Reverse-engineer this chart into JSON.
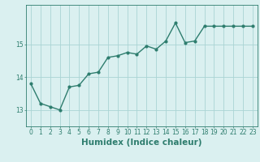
{
  "x": [
    0,
    1,
    2,
    3,
    4,
    5,
    6,
    7,
    8,
    9,
    10,
    11,
    12,
    13,
    14,
    15,
    16,
    17,
    18,
    19,
    20,
    21,
    22,
    23
  ],
  "y": [
    13.8,
    13.2,
    13.1,
    13.0,
    13.7,
    13.75,
    14.1,
    14.15,
    14.6,
    14.65,
    14.75,
    14.7,
    14.95,
    14.85,
    15.1,
    15.65,
    15.05,
    15.1,
    15.55,
    15.55,
    15.55,
    15.55,
    15.55,
    15.55
  ],
  "line_color": "#2e7d6e",
  "marker": "o",
  "marker_size": 2.0,
  "bg_color": "#daf0f0",
  "grid_color": "#aad4d4",
  "xlabel": "Humidex (Indice chaleur)",
  "ylim": [
    12.5,
    16.2
  ],
  "yticks": [
    13,
    14,
    15
  ],
  "xticks": [
    0,
    1,
    2,
    3,
    4,
    5,
    6,
    7,
    8,
    9,
    10,
    11,
    12,
    13,
    14,
    15,
    16,
    17,
    18,
    19,
    20,
    21,
    22,
    23
  ],
  "tick_fontsize": 5.5,
  "xlabel_fontsize": 7.5,
  "linewidth": 1.0
}
